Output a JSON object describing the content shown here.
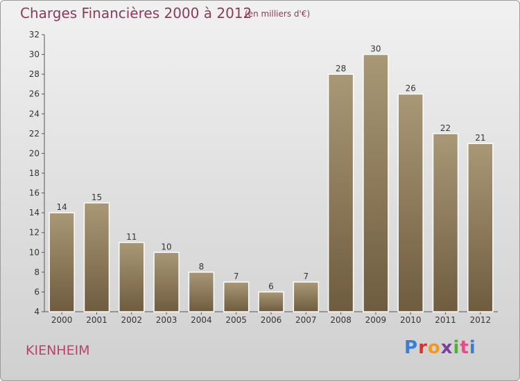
{
  "title": "Charges Financières 2000 à 2012",
  "subtitle": "(en milliers d'€)",
  "commune": "KIENHEIM",
  "logo": {
    "letters": [
      "P",
      "r",
      "o",
      "x",
      "i",
      "t",
      "i"
    ],
    "colors": [
      "#3b7fd4",
      "#e0302a",
      "#f29a1f",
      "#7a3fa0",
      "#4fb03a",
      "#e84a8a",
      "#3b7fd4"
    ]
  },
  "chart_data": {
    "type": "bar",
    "title": "Charges Financières 2000 à 2012",
    "subtitle": "(en milliers d'€)",
    "categories": [
      "2000",
      "2001",
      "2002",
      "2003",
      "2004",
      "2005",
      "2006",
      "2007",
      "2008",
      "2009",
      "2010",
      "2011",
      "2012"
    ],
    "values": [
      14,
      15,
      11,
      10,
      8,
      7,
      6,
      7,
      28,
      30,
      26,
      22,
      21
    ],
    "ylim": [
      4,
      32
    ],
    "yticks": [
      4,
      6,
      8,
      10,
      12,
      14,
      16,
      18,
      20,
      22,
      24,
      26,
      28,
      30,
      32
    ],
    "grid": false,
    "colors": {
      "bar_top": "#a99876",
      "bar_bottom": "#6f5c3f",
      "bar_edge": "#fdfdfd",
      "axis": "#555555",
      "text": "#333333"
    }
  }
}
